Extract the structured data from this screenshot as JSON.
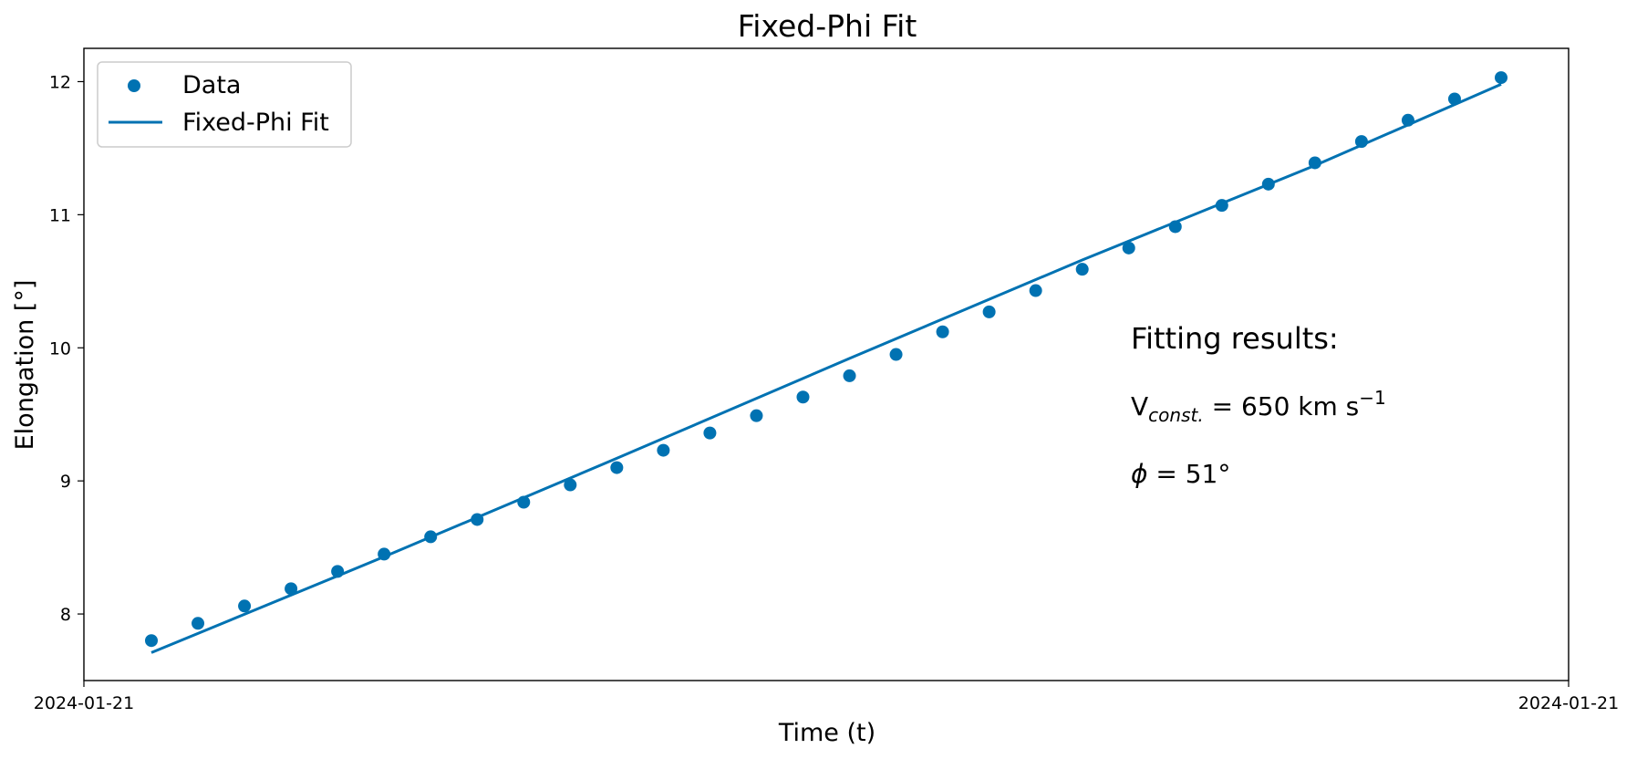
{
  "chart_data": {
    "type": "scatter",
    "title": "Fixed-Phi Fit",
    "xlabel": "Time (t)",
    "ylabel": "Elongation [°]",
    "x_tick_labels": [
      "2024-01-21",
      "2024-01-21"
    ],
    "y_ticks": [
      8,
      9,
      10,
      11,
      12
    ],
    "ylim": [
      7.5,
      12.25
    ],
    "grid": false,
    "legend_position": "top-left",
    "color": "#0072b2",
    "series": [
      {
        "name": "Data",
        "kind": "scatter",
        "x": [
          0,
          1,
          2,
          3,
          4,
          5,
          6,
          7,
          8,
          9,
          10,
          11,
          12,
          13,
          14,
          15,
          16,
          17,
          18,
          19,
          20,
          21,
          22,
          23,
          24,
          25,
          26,
          27,
          28,
          29
        ],
        "y": [
          7.8,
          7.93,
          8.06,
          8.19,
          8.32,
          8.45,
          8.58,
          8.71,
          8.84,
          8.97,
          9.1,
          9.23,
          9.36,
          9.49,
          9.63,
          9.79,
          9.95,
          10.12,
          10.27,
          10.43,
          10.59,
          10.75,
          10.91,
          11.07,
          11.23,
          11.39,
          11.55,
          11.71,
          11.87,
          12.03
        ]
      },
      {
        "name": "Fixed-Phi Fit",
        "kind": "line",
        "x": [
          0,
          5,
          10,
          15,
          20,
          25,
          29
        ],
        "y": [
          7.71,
          8.43,
          9.17,
          9.92,
          10.66,
          11.37,
          11.98
        ]
      }
    ],
    "annotations": {
      "heading": "Fitting results:",
      "v_prefix": "V",
      "v_subscript": "const.",
      "v_value": " = 650 km s",
      "v_exponent": "−1",
      "phi_symbol": "ϕ",
      "phi_value": " = 51°"
    }
  }
}
